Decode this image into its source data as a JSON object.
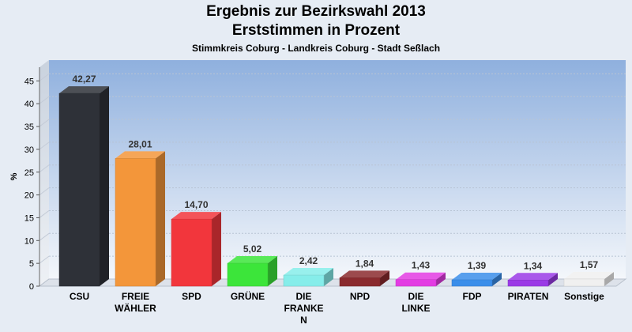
{
  "chart_data": {
    "type": "bar",
    "title": "Ergebnis zur Bezirkswahl 2013",
    "subtitle": "Erststimmen in Prozent",
    "subsubtitle": "Stimmkreis Coburg - Landkreis Coburg - Stadt Seßlach",
    "ylabel": "%",
    "ylim": [
      0,
      48
    ],
    "yticks": [
      0,
      5,
      10,
      15,
      20,
      25,
      30,
      35,
      40,
      45
    ],
    "grid": true,
    "categories": [
      [
        "CSU"
      ],
      [
        "FREIE",
        "WÄHLER"
      ],
      [
        "SPD"
      ],
      [
        "GRÜNE"
      ],
      [
        "DIE",
        "FRANKE",
        "N"
      ],
      [
        "NPD"
      ],
      [
        "DIE",
        "LINKE"
      ],
      [
        "FDP"
      ],
      [
        "PIRATEN"
      ],
      [
        "Sonstige"
      ]
    ],
    "values": [
      42.27,
      28.01,
      14.7,
      5.02,
      2.42,
      1.84,
      1.43,
      1.39,
      1.34,
      1.57
    ],
    "value_labels": [
      "42,27",
      "28,01",
      "14,70",
      "5,02",
      "2,42",
      "1,84",
      "1,43",
      "1,39",
      "1,34",
      "1,57"
    ],
    "colors": [
      "#2e3138",
      "#f3963a",
      "#f2363c",
      "#3ce53a",
      "#86edea",
      "#8a2a2e",
      "#e33ce3",
      "#3a8eea",
      "#9a3ae6",
      "#f0f0f0"
    ]
  }
}
